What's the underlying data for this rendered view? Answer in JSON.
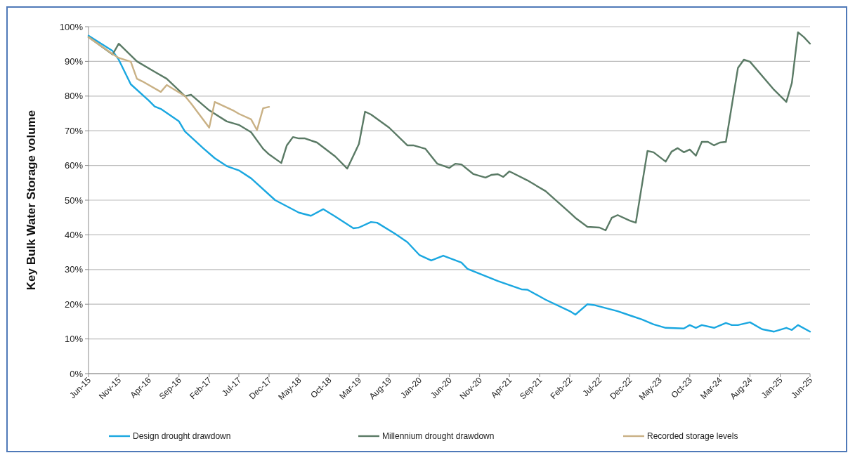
{
  "chart_data": {
    "type": "line",
    "ylabel": "Key Bulk Water Storage volume",
    "xlim": [
      "2015-06",
      "2025-06"
    ],
    "ylim": [
      0,
      100
    ],
    "yticks": [
      {
        "value": 0,
        "label": "0%"
      },
      {
        "value": 10,
        "label": "10%"
      },
      {
        "value": 20,
        "label": "20%"
      },
      {
        "value": 30,
        "label": "30%"
      },
      {
        "value": 40,
        "label": "40%"
      },
      {
        "value": 50,
        "label": "50%"
      },
      {
        "value": 60,
        "label": "60%"
      },
      {
        "value": 70,
        "label": "70%"
      },
      {
        "value": 80,
        "label": "80%"
      },
      {
        "value": 90,
        "label": "90%"
      },
      {
        "value": 100,
        "label": "100%"
      }
    ],
    "xticks": [
      {
        "value": "2015-06",
        "label": "Jun-15"
      },
      {
        "value": "2015-11",
        "label": "Nov-15"
      },
      {
        "value": "2016-04",
        "label": "Apr-16"
      },
      {
        "value": "2016-09",
        "label": "Sep-16"
      },
      {
        "value": "2017-02",
        "label": "Feb-17"
      },
      {
        "value": "2017-07",
        "label": "Jul-17"
      },
      {
        "value": "2017-12",
        "label": "Dec-17"
      },
      {
        "value": "2018-05",
        "label": "May-18"
      },
      {
        "value": "2018-10",
        "label": "Oct-18"
      },
      {
        "value": "2019-03",
        "label": "Mar-19"
      },
      {
        "value": "2019-08",
        "label": "Aug-19"
      },
      {
        "value": "2020-01",
        "label": "Jan-20"
      },
      {
        "value": "2020-06",
        "label": "Jun-20"
      },
      {
        "value": "2020-11",
        "label": "Nov-20"
      },
      {
        "value": "2021-04",
        "label": "Apr-21"
      },
      {
        "value": "2021-09",
        "label": "Sep-21"
      },
      {
        "value": "2022-02",
        "label": "Feb-22"
      },
      {
        "value": "2022-07",
        "label": "Jul-22"
      },
      {
        "value": "2022-12",
        "label": "Dec-22"
      },
      {
        "value": "2023-05",
        "label": "May-23"
      },
      {
        "value": "2023-10",
        "label": "Oct-23"
      },
      {
        "value": "2024-03",
        "label": "Mar-24"
      },
      {
        "value": "2024-08",
        "label": "Aug-24"
      },
      {
        "value": "2025-01",
        "label": "Jan-25"
      },
      {
        "value": "2025-06",
        "label": "Jun-25"
      }
    ],
    "grid": "y",
    "legend": "bottom",
    "marker": "none",
    "line_style": "solid",
    "series": [
      {
        "name": "Design drought drawdown",
        "color": "#1aa7e0",
        "x": [
          "2015-06",
          "2015-10",
          "2015-11",
          "2016-01",
          "2016-04",
          "2016-05",
          "2016-06",
          "2016-09",
          "2016-10",
          "2017-01",
          "2017-03",
          "2017-05",
          "2017-07",
          "2017-09",
          "2018-01",
          "2018-05",
          "2018-07",
          "2018-09",
          "2018-11",
          "2019-02",
          "2019-03",
          "2019-05",
          "2019-06",
          "2019-09",
          "2019-11",
          "2020-01",
          "2020-03",
          "2020-05",
          "2020-08",
          "2020-09",
          "2020-12",
          "2021-02",
          "2021-06",
          "2021-07",
          "2021-10",
          "2022-02",
          "2022-03",
          "2022-05",
          "2022-06",
          "2022-10",
          "2022-12",
          "2023-02",
          "2023-04",
          "2023-06",
          "2023-09",
          "2023-10",
          "2023-11",
          "2023-12",
          "2024-02",
          "2024-04",
          "2024-05",
          "2024-06",
          "2024-08",
          "2024-10",
          "2024-12",
          "2025-02",
          "2025-03",
          "2025-04",
          "2025-06"
        ],
        "values": [
          97.4,
          93,
          90.5,
          83.4,
          78.7,
          77,
          76.3,
          72.7,
          69.8,
          65,
          62.1,
          59.8,
          58.6,
          56.3,
          50,
          46.4,
          45.5,
          47.4,
          45.3,
          41.9,
          42.1,
          43.7,
          43.5,
          40.3,
          37.9,
          34.2,
          32.6,
          34,
          32,
          30.2,
          28.1,
          26.7,
          24.3,
          24.2,
          21.3,
          18,
          17,
          20,
          19.8,
          18,
          16.8,
          15.6,
          14.2,
          13.2,
          13,
          14,
          13.2,
          14,
          13.2,
          14.6,
          14,
          14,
          14.8,
          12.8,
          12.1,
          13.2,
          12.6,
          14,
          12.1
        ]
      },
      {
        "name": "Millennium drought drawdown",
        "color": "#5a7a65",
        "x": [
          "2015-06",
          "2015-10",
          "2015-11",
          "2016-02",
          "2016-05",
          "2016-07",
          "2016-10",
          "2016-11",
          "2017-02",
          "2017-05",
          "2017-07",
          "2017-09",
          "2017-11",
          "2017-12",
          "2018-02",
          "2018-03",
          "2018-04",
          "2018-05",
          "2018-06",
          "2018-08",
          "2018-11",
          "2019-01",
          "2019-03",
          "2019-04",
          "2019-05",
          "2019-08",
          "2019-11",
          "2019-12",
          "2020-02",
          "2020-04",
          "2020-06",
          "2020-07",
          "2020-08",
          "2020-10",
          "2020-12",
          "2021-01",
          "2021-02",
          "2021-03",
          "2021-04",
          "2021-07",
          "2021-10",
          "2022-02",
          "2022-03",
          "2022-05",
          "2022-07",
          "2022-08",
          "2022-09",
          "2022-10",
          "2022-12",
          "2023-01",
          "2023-03",
          "2023-04",
          "2023-06",
          "2023-07",
          "2023-08",
          "2023-09",
          "2023-10",
          "2023-11",
          "2023-12",
          "2024-01",
          "2024-02",
          "2024-03",
          "2024-04",
          "2024-06",
          "2024-07",
          "2024-08",
          "2024-12",
          "2025-02",
          "2025-03",
          "2025-04",
          "2025-05",
          "2025-06"
        ],
        "values": [
          97,
          92,
          95.1,
          90,
          87,
          85,
          80,
          80.4,
          75.9,
          72.7,
          71.7,
          69.6,
          64.8,
          63.2,
          60.7,
          65.8,
          68.2,
          67.8,
          67.8,
          66.6,
          62.6,
          59.1,
          66.2,
          75.5,
          74.7,
          70.9,
          65.8,
          65.8,
          64.8,
          60.5,
          59.3,
          60.5,
          60.3,
          57.5,
          56.5,
          57.3,
          57.5,
          56.7,
          58.3,
          55.7,
          52.6,
          46.4,
          44.9,
          42.3,
          42.1,
          41.3,
          44.9,
          45.7,
          44.1,
          43.5,
          64.2,
          63.8,
          61.1,
          64,
          65,
          63.8,
          64.6,
          62.8,
          66.8,
          66.8,
          65.8,
          66.6,
          66.8,
          88.1,
          90.5,
          89.9,
          81.8,
          78.3,
          83.8,
          98.4,
          97,
          95.1
        ]
      },
      {
        "name": "Recorded storage levels",
        "color": "#c9b185",
        "x": [
          "2015-06",
          "2015-10",
          "2015-11",
          "2016-01",
          "2016-02",
          "2016-03",
          "2016-06",
          "2016-07",
          "2016-10",
          "2016-11",
          "2017-02",
          "2017-03",
          "2017-06",
          "2017-07",
          "2017-09",
          "2017-10",
          "2017-11",
          "2017-12"
        ],
        "values": [
          97,
          92.1,
          91,
          89.9,
          85,
          84.2,
          81.2,
          83.2,
          80,
          77.9,
          70.9,
          78.3,
          75.9,
          74.9,
          73.3,
          70.2,
          76.5,
          76.9
        ]
      }
    ]
  }
}
